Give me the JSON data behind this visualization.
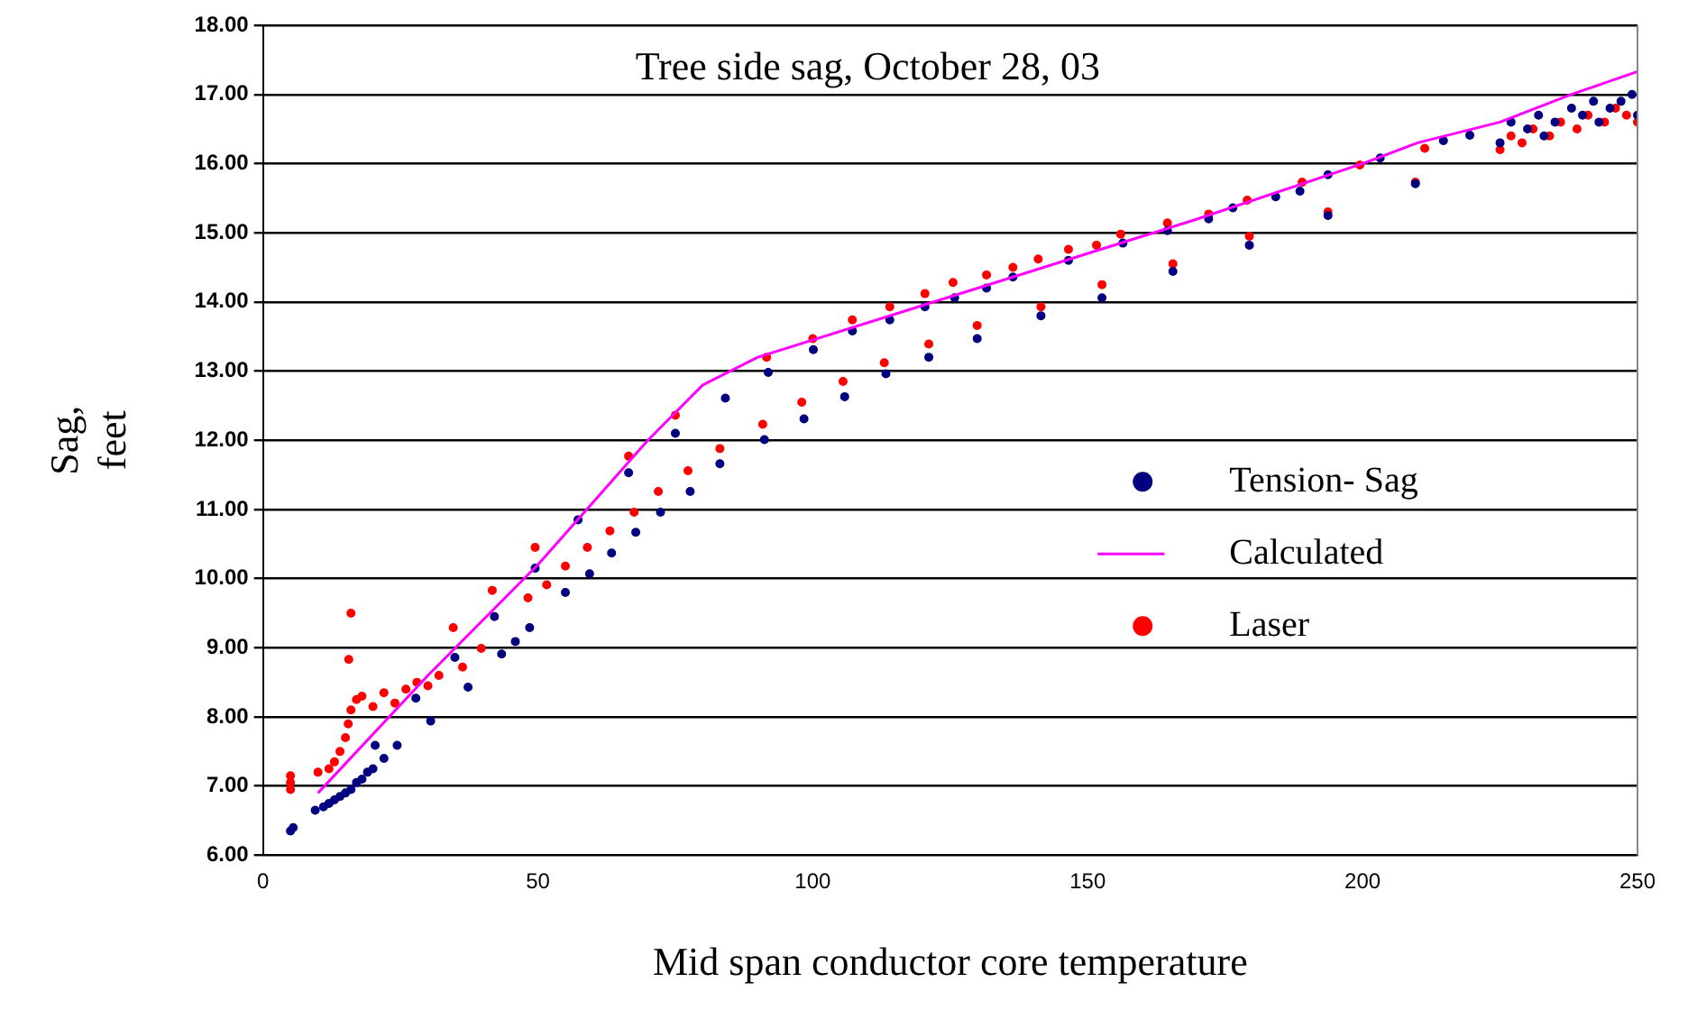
{
  "chart_data": {
    "type": "scatter",
    "title": "Tree side sag, October 28, 03",
    "xlabel": "Mid span conductor core temperature",
    "ylabel": "Sag, feet",
    "xlim": [
      0,
      250
    ],
    "xticks": [
      0,
      50,
      100,
      150,
      200,
      250
    ],
    "ylim": [
      6,
      18
    ],
    "yticks": [
      {
        "value": 6,
        "label": "6.00"
      },
      {
        "value": 7,
        "label": "7.00"
      },
      {
        "value": 8,
        "label": "8.00"
      },
      {
        "value": 9,
        "label": "9.00"
      },
      {
        "value": 10,
        "label": "10.00"
      },
      {
        "value": 11,
        "label": "11.00"
      },
      {
        "value": 12,
        "label": "12.00"
      },
      {
        "value": 13,
        "label": "13.00"
      },
      {
        "value": 14,
        "label": "14.00"
      },
      {
        "value": 15,
        "label": "15.00"
      },
      {
        "value": 16,
        "label": "16.00"
      },
      {
        "value": 17,
        "label": "17.00"
      },
      {
        "value": 18,
        "label": "18.00"
      }
    ],
    "grid": "y",
    "legend": "right",
    "marker": "circle",
    "series": [
      {
        "name": "Tension- Sag",
        "color": "#000080",
        "x": [
          5,
          5.5,
          9.5,
          11,
          12,
          13,
          14,
          15,
          16,
          17,
          18,
          19,
          20,
          22,
          24.4,
          30.5,
          37.3,
          43.4,
          45.9,
          48.5,
          55,
          59.4,
          63.4,
          67.8,
          72.3,
          77.7,
          83.1,
          91.2,
          98.4,
          105.8,
          113.3,
          121.1,
          129.9,
          141.5,
          152.6,
          165.5,
          179.4,
          193.7,
          209.6,
          20.4,
          27.8,
          34.9,
          42.1,
          49.5,
          57.3,
          66.5,
          75,
          84.1,
          91.9,
          100.1,
          107.2,
          114,
          120.4,
          125.8,
          131.6,
          136.4,
          146.5,
          156.4,
          164.5,
          172,
          176.4,
          184.2,
          188.6,
          193.7,
          203.2,
          214.7,
          219.5,
          225,
          227,
          230,
          232,
          233,
          235,
          238,
          240,
          242,
          243,
          245,
          247,
          249,
          250
        ],
        "values": [
          6.35,
          6.4,
          6.65,
          6.7,
          6.75,
          6.8,
          6.85,
          6.9,
          6.95,
          7.05,
          7.1,
          7.2,
          7.25,
          7.4,
          7.59,
          7.94,
          8.43,
          8.91,
          9.09,
          9.29,
          9.8,
          10.07,
          10.37,
          10.67,
          10.96,
          11.26,
          11.66,
          12.01,
          12.31,
          12.63,
          12.96,
          13.2,
          13.47,
          13.8,
          14.06,
          14.44,
          14.82,
          15.25,
          15.71,
          7.59,
          8.27,
          8.86,
          9.45,
          10.15,
          10.85,
          11.53,
          12.1,
          12.61,
          12.98,
          13.31,
          13.58,
          13.74,
          13.93,
          14.06,
          14.2,
          14.36,
          14.6,
          14.85,
          15.03,
          15.2,
          15.36,
          15.52,
          15.6,
          15.84,
          16.08,
          16.33,
          16.41,
          16.3,
          16.6,
          16.5,
          16.7,
          16.4,
          16.6,
          16.8,
          16.7,
          16.9,
          16.6,
          16.8,
          16.9,
          17,
          16.7
        ]
      },
      {
        "name": "Calculated",
        "type": "line",
        "color": "#ff00ff",
        "marker": "none",
        "x": [
          10,
          30,
          50,
          60,
          70,
          80,
          90,
          130,
          170,
          200,
          210,
          225,
          238,
          250
        ],
        "values": [
          6.9,
          8.6,
          10.2,
          11.1,
          12,
          12.8,
          13.2,
          14.2,
          15.2,
          16,
          16.3,
          16.6,
          17,
          17.33
        ]
      },
      {
        "name": "Laser",
        "color": "#ff0000",
        "x": [
          5,
          5,
          5,
          10,
          12,
          13,
          14,
          15,
          15.5,
          16,
          17,
          15.6,
          16,
          18,
          20,
          22,
          24,
          26,
          28,
          30,
          32,
          34.6,
          36.3,
          39.7,
          41.7,
          48.2,
          51.6,
          55,
          59,
          63.1,
          67.5,
          71.9,
          77.3,
          83.1,
          90.9,
          98,
          105.5,
          113,
          121.1,
          129.9,
          141.5,
          152.6,
          165.5,
          179.4,
          193.7,
          209.6,
          49.5,
          66.5,
          75,
          91.6,
          100,
          107.2,
          114,
          120.4,
          125.5,
          131.6,
          136.4,
          141,
          146.5,
          151.6,
          156,
          164.5,
          172,
          179,
          189,
          199.5,
          211.3,
          219.5,
          225,
          227,
          229,
          231,
          234,
          236,
          239,
          241,
          244,
          246,
          248,
          250
        ],
        "values": [
          6.95,
          7.05,
          7.15,
          7.2,
          7.25,
          7.35,
          7.5,
          7.7,
          7.9,
          8.1,
          8.25,
          8.83,
          9.5,
          8.3,
          8.15,
          8.35,
          8.2,
          8.4,
          8.5,
          8.45,
          8.6,
          9.29,
          8.72,
          8.99,
          9.83,
          9.72,
          9.91,
          10.18,
          10.45,
          10.69,
          10.96,
          11.26,
          11.56,
          11.88,
          12.23,
          12.55,
          12.85,
          13.12,
          13.39,
          13.66,
          13.93,
          14.25,
          14.55,
          14.95,
          15.3,
          15.73,
          10.45,
          11.77,
          12.36,
          13.2,
          13.47,
          13.74,
          13.93,
          14.12,
          14.28,
          14.39,
          14.5,
          14.62,
          14.76,
          14.82,
          14.98,
          15.14,
          15.27,
          15.47,
          15.73,
          15.98,
          16.22,
          null,
          16.2,
          16.4,
          16.3,
          16.5,
          16.4,
          16.6,
          16.5,
          16.7,
          16.6,
          16.8,
          16.7,
          16.6
        ]
      }
    ]
  }
}
